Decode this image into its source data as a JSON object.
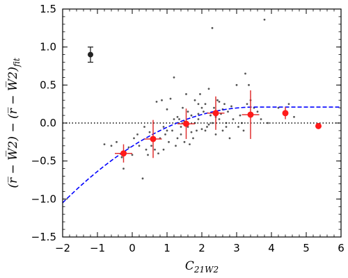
{
  "chart_data": {
    "type": "scatter",
    "title": "",
    "xlabel": {
      "main": "C",
      "sub": "21W2"
    },
    "ylabel": {
      "text": "(r̅ − W̅2) − (r̅ − W̅2)",
      "sub": "fit"
    },
    "xlim": [
      -2,
      6
    ],
    "ylim": [
      -1.5,
      1.5
    ],
    "xticks": [
      -2,
      -1,
      0,
      1,
      2,
      3,
      4,
      5,
      6
    ],
    "xtick_labels": [
      "−2",
      "−1",
      "0",
      "1",
      "2",
      "3",
      "4",
      "5",
      "6"
    ],
    "yticks": [
      -1.5,
      -1.0,
      -0.5,
      0.0,
      0.5,
      1.0,
      1.5
    ],
    "ytick_labels": [
      "−1.5",
      "−1.0",
      "−0.5",
      "0.0",
      "0.5",
      "1.0",
      "1.5"
    ],
    "grid": false,
    "legend": "none",
    "colors": {
      "points": "#555555",
      "binned": "#ff1a1a",
      "errbar": "#e03030",
      "fit": "#0000ff",
      "reference": "#000000",
      "sample": "#222222"
    },
    "scatter_points": [
      [
        -0.8,
        -0.28
      ],
      [
        -0.6,
        -0.3
      ],
      [
        -0.45,
        -0.25
      ],
      [
        -0.3,
        -0.45
      ],
      [
        -0.25,
        -0.6
      ],
      [
        -0.2,
        -0.38
      ],
      [
        -0.1,
        -0.32
      ],
      [
        0.0,
        -0.42
      ],
      [
        0.05,
        -0.2
      ],
      [
        0.15,
        -0.15
      ],
      [
        0.3,
        -0.73
      ],
      [
        0.35,
        -0.05
      ],
      [
        0.4,
        -0.35
      ],
      [
        0.45,
        -0.42
      ],
      [
        0.5,
        -0.12
      ],
      [
        0.55,
        -0.3
      ],
      [
        0.6,
        -0.22
      ],
      [
        0.65,
        -0.35
      ],
      [
        0.7,
        0.28
      ],
      [
        0.75,
        -0.4
      ],
      [
        0.8,
        -0.2
      ],
      [
        0.85,
        0.3
      ],
      [
        0.9,
        -0.05
      ],
      [
        0.95,
        -0.15
      ],
      [
        1.0,
        0.18
      ],
      [
        1.05,
        -0.25
      ],
      [
        1.1,
        0.32
      ],
      [
        1.15,
        -0.1
      ],
      [
        1.2,
        0.6
      ],
      [
        1.25,
        -0.3
      ],
      [
        1.3,
        -0.2
      ],
      [
        1.35,
        0.05
      ],
      [
        1.4,
        -0.15
      ],
      [
        1.45,
        0.2
      ],
      [
        1.5,
        0.02
      ],
      [
        1.55,
        0.38
      ],
      [
        1.6,
        -0.05
      ],
      [
        1.65,
        -0.28
      ],
      [
        1.7,
        0.1
      ],
      [
        1.75,
        -0.2
      ],
      [
        1.8,
        0.3
      ],
      [
        1.85,
        -0.1
      ],
      [
        1.9,
        0.05
      ],
      [
        1.95,
        0.38
      ],
      [
        2.0,
        -0.08
      ],
      [
        2.05,
        0.15
      ],
      [
        2.1,
        0.25
      ],
      [
        2.15,
        -0.05
      ],
      [
        2.2,
        0.45
      ],
      [
        2.25,
        0.1
      ],
      [
        2.3,
        1.25
      ],
      [
        2.35,
        0.2
      ],
      [
        2.4,
        -0.15
      ],
      [
        2.45,
        0.3
      ],
      [
        2.5,
        0.05
      ],
      [
        2.55,
        0.12
      ],
      [
        2.6,
        -0.1
      ],
      [
        2.65,
        0.25
      ],
      [
        2.7,
        0.0
      ],
      [
        2.75,
        0.15
      ],
      [
        2.8,
        -0.2
      ],
      [
        2.85,
        0.22
      ],
      [
        2.9,
        0.05
      ],
      [
        3.0,
        0.5
      ],
      [
        3.05,
        -0.05
      ],
      [
        3.1,
        0.1
      ],
      [
        3.15,
        0.0
      ],
      [
        3.25,
        0.65
      ],
      [
        3.3,
        0.25
      ],
      [
        3.35,
        0.5
      ],
      [
        3.4,
        0.3
      ],
      [
        3.5,
        0.2
      ],
      [
        3.6,
        0.15
      ],
      [
        3.7,
        0.05
      ],
      [
        3.8,
        1.36
      ],
      [
        3.9,
        0.0
      ],
      [
        4.2,
        0.2
      ],
      [
        4.5,
        0.25
      ],
      [
        4.65,
        0.08
      ],
      [
        1.0,
        -0.1
      ],
      [
        1.2,
        0.05
      ],
      [
        1.4,
        -0.05
      ],
      [
        1.6,
        0.15
      ],
      [
        1.8,
        0.0
      ],
      [
        2.0,
        0.2
      ],
      [
        2.2,
        -0.02
      ],
      [
        2.4,
        0.08
      ],
      [
        2.6,
        0.18
      ],
      [
        1.7,
        -0.12
      ],
      [
        1.9,
        0.12
      ],
      [
        2.1,
        -0.1
      ],
      [
        2.3,
        0.0
      ],
      [
        2.5,
        0.28
      ],
      [
        0.2,
        -0.3
      ],
      [
        0.9,
        -0.35
      ],
      [
        1.3,
        0.08
      ],
      [
        1.5,
        -0.25
      ],
      [
        1.9,
        0.25
      ],
      [
        2.7,
        -0.05
      ],
      [
        3.2,
        -0.1
      ]
    ],
    "binned_points": [
      {
        "x": -0.25,
        "y": -0.4,
        "xerr": 0.25,
        "yerr": 0.12
      },
      {
        "x": 0.6,
        "y": -0.21,
        "xerr": 0.25,
        "yerr": 0.25
      },
      {
        "x": 1.55,
        "y": -0.01,
        "xerr": 0.25,
        "yerr": 0.2
      },
      {
        "x": 2.4,
        "y": 0.13,
        "xerr": 0.25,
        "yerr": 0.22
      },
      {
        "x": 3.4,
        "y": 0.11,
        "xerr": 0.25,
        "yerr": 0.32
      },
      {
        "x": 4.4,
        "y": 0.13,
        "xerr": 0.08,
        "yerr": 0.08
      },
      {
        "x": 5.35,
        "y": -0.04,
        "xerr": 0.0,
        "yerr": 0.0
      }
    ],
    "sample_error_point": {
      "x": -1.2,
      "y": 0.9,
      "yerr": 0.1
    },
    "fit_curve": {
      "x_peak": 3.55,
      "y_peak": 0.21,
      "x_start": -2.0,
      "y_start": -1.05,
      "x_end": 6.0
    },
    "reference_line_y": 0.0
  }
}
